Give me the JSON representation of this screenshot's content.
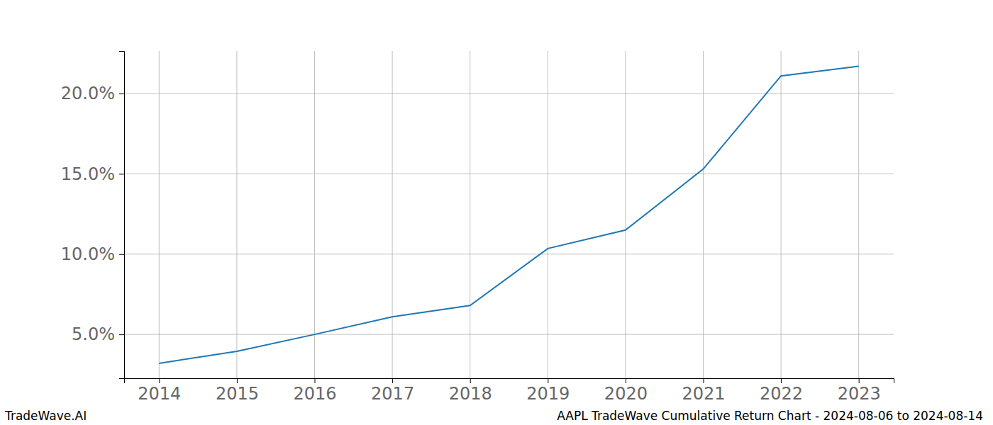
{
  "chart_data": {
    "type": "line",
    "title": "AAPL TradeWave Cumulative Return Chart - 2024-08-06 to 2024-08-14",
    "annotations": [
      "TradeWave.AI"
    ],
    "x": [
      2014,
      2015,
      2016,
      2017,
      2018,
      2019,
      2020,
      2021,
      2022,
      2023
    ],
    "values": [
      3.2,
      3.95,
      5.0,
      6.1,
      6.8,
      10.35,
      11.5,
      15.3,
      21.1,
      21.7
    ],
    "color": "#1f77b4",
    "xlim": [
      2013.55,
      2023.45
    ],
    "xticks": [
      2014,
      2015,
      2016,
      2017,
      2018,
      2019,
      2020,
      2021,
      2022,
      2023
    ],
    "ylim": [
      2.27,
      22.65
    ],
    "yticks": [
      {
        "value": 5,
        "label": "5.0%"
      },
      {
        "value": 10,
        "label": "10.0%"
      },
      {
        "value": 15,
        "label": "15.0%"
      },
      {
        "value": 20,
        "label": "20.0%"
      }
    ],
    "grid": true
  }
}
